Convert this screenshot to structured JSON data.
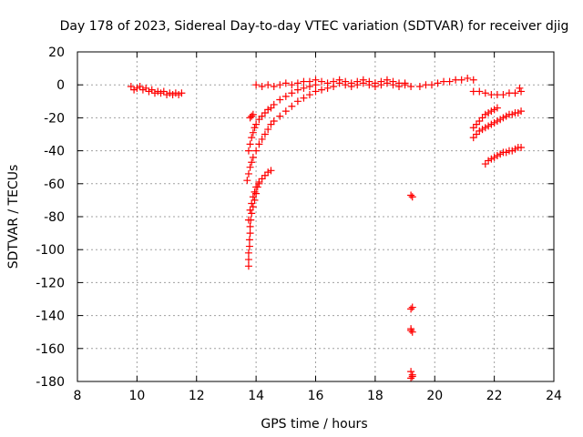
{
  "chart_data": {
    "type": "scatter",
    "title": "Day 178 of 2023, Sidereal Day-to-day VTEC variation (SDTVAR) for receiver djig",
    "xlabel": "GPS time / hours",
    "ylabel": "SDTVAR / TECUs",
    "xlim": [
      8,
      24
    ],
    "ylim": [
      -180,
      20
    ],
    "xticks": [
      8,
      10,
      12,
      14,
      16,
      18,
      20,
      22,
      24
    ],
    "yticks": [
      20,
      0,
      -20,
      -40,
      -60,
      -80,
      -100,
      -120,
      -140,
      -160,
      -180
    ],
    "grid": true,
    "marker": "+",
    "color": "#ff0000",
    "series": [
      {
        "name": "segment-1",
        "points": [
          [
            9.8,
            -1
          ],
          [
            9.9,
            -3
          ],
          [
            10.0,
            -2
          ],
          [
            10.1,
            -1
          ],
          [
            10.2,
            -3
          ],
          [
            10.3,
            -2
          ],
          [
            10.4,
            -4
          ],
          [
            10.5,
            -3
          ],
          [
            10.6,
            -5
          ],
          [
            10.7,
            -4
          ],
          [
            10.8,
            -5
          ],
          [
            10.9,
            -4
          ],
          [
            11.0,
            -6
          ],
          [
            11.1,
            -5
          ],
          [
            11.2,
            -6
          ],
          [
            11.3,
            -5
          ],
          [
            11.4,
            -6
          ],
          [
            11.5,
            -5
          ]
        ]
      },
      {
        "name": "segment-2",
        "points": [
          [
            13.8,
            -20
          ],
          [
            13.85,
            -19
          ],
          [
            13.9,
            -18
          ]
        ]
      },
      {
        "name": "segment-3",
        "points": [
          [
            13.75,
            -40
          ],
          [
            13.8,
            -36
          ],
          [
            13.85,
            -32
          ],
          [
            13.9,
            -29
          ],
          [
            13.95,
            -26
          ],
          [
            14.0,
            -24
          ],
          [
            14.1,
            -21
          ],
          [
            14.2,
            -19
          ],
          [
            14.3,
            -17
          ],
          [
            14.4,
            -15
          ],
          [
            14.5,
            -14
          ],
          [
            14.6,
            -12
          ],
          [
            14.8,
            -9
          ],
          [
            15.0,
            -7
          ],
          [
            15.2,
            -5
          ],
          [
            15.4,
            -3
          ],
          [
            15.6,
            -2
          ],
          [
            15.8,
            -1
          ],
          [
            16.0,
            0
          ]
        ]
      },
      {
        "name": "segment-4",
        "points": [
          [
            13.7,
            -58
          ],
          [
            13.75,
            -54
          ],
          [
            13.8,
            -50
          ],
          [
            13.85,
            -47
          ],
          [
            13.9,
            -44
          ],
          [
            14.0,
            -40
          ],
          [
            14.1,
            -36
          ],
          [
            14.2,
            -33
          ],
          [
            14.3,
            -30
          ],
          [
            14.4,
            -27
          ],
          [
            14.5,
            -24
          ],
          [
            14.6,
            -22
          ],
          [
            14.8,
            -19
          ],
          [
            15.0,
            -16
          ],
          [
            15.2,
            -13
          ],
          [
            15.4,
            -10
          ],
          [
            15.6,
            -8
          ],
          [
            15.8,
            -6
          ],
          [
            16.0,
            -4
          ],
          [
            16.2,
            -3
          ],
          [
            16.4,
            -2
          ],
          [
            16.6,
            -1
          ]
        ]
      },
      {
        "name": "segment-5",
        "points": [
          [
            13.75,
            -82
          ],
          [
            13.8,
            -76
          ],
          [
            13.85,
            -72
          ],
          [
            13.9,
            -68
          ],
          [
            13.95,
            -65
          ],
          [
            14.0,
            -62
          ],
          [
            14.1,
            -59
          ],
          [
            14.2,
            -57
          ],
          [
            14.3,
            -55
          ],
          [
            14.4,
            -53
          ],
          [
            14.5,
            -52
          ]
        ]
      },
      {
        "name": "segment-6",
        "points": [
          [
            13.75,
            -110
          ],
          [
            13.75,
            -106
          ],
          [
            13.75,
            -102
          ],
          [
            13.78,
            -98
          ],
          [
            13.78,
            -94
          ],
          [
            13.8,
            -90
          ],
          [
            13.8,
            -86
          ],
          [
            13.82,
            -82
          ],
          [
            13.85,
            -78
          ],
          [
            13.9,
            -74
          ],
          [
            13.95,
            -70
          ],
          [
            14.0,
            -66
          ],
          [
            14.05,
            -62
          ],
          [
            14.1,
            -60
          ]
        ]
      },
      {
        "name": "segment-7",
        "points": [
          [
            14.0,
            0
          ],
          [
            14.2,
            -1
          ],
          [
            14.4,
            0
          ],
          [
            14.6,
            -1
          ],
          [
            14.8,
            0
          ],
          [
            15.0,
            1
          ],
          [
            15.2,
            0
          ],
          [
            15.4,
            1
          ],
          [
            15.6,
            2
          ],
          [
            15.8,
            2
          ],
          [
            16.0,
            3
          ],
          [
            16.2,
            2
          ],
          [
            16.4,
            1
          ],
          [
            16.6,
            2
          ],
          [
            16.8,
            3
          ],
          [
            17.0,
            2
          ],
          [
            17.2,
            1
          ],
          [
            17.4,
            2
          ],
          [
            17.6,
            3
          ],
          [
            17.8,
            2
          ],
          [
            18.0,
            1
          ],
          [
            18.2,
            2
          ],
          [
            18.4,
            3
          ],
          [
            18.6,
            2
          ],
          [
            18.8,
            1
          ],
          [
            19.0,
            1
          ]
        ]
      },
      {
        "name": "segment-8",
        "points": [
          [
            16.8,
            1
          ],
          [
            17.0,
            0
          ],
          [
            17.2,
            -1
          ],
          [
            17.4,
            0
          ],
          [
            17.6,
            1
          ],
          [
            17.8,
            0
          ],
          [
            18.0,
            -1
          ],
          [
            18.2,
            0
          ],
          [
            18.4,
            1
          ],
          [
            18.6,
            0
          ],
          [
            18.8,
            -1
          ],
          [
            19.0,
            0
          ],
          [
            19.2,
            -1
          ]
        ]
      },
      {
        "name": "segment-9",
        "points": [
          [
            19.2,
            -67
          ],
          [
            19.25,
            -68
          ]
        ]
      },
      {
        "name": "segment-10",
        "points": [
          [
            19.2,
            -136
          ],
          [
            19.25,
            -135
          ]
        ]
      },
      {
        "name": "segment-11",
        "points": [
          [
            19.2,
            -148
          ],
          [
            19.25,
            -150
          ],
          [
            19.2,
            -149
          ]
        ]
      },
      {
        "name": "segment-12",
        "points": [
          [
            19.2,
            -174
          ],
          [
            19.25,
            -176
          ],
          [
            19.2,
            -178
          ],
          [
            19.25,
            -177
          ]
        ]
      },
      {
        "name": "segment-13",
        "points": [
          [
            19.5,
            -1
          ],
          [
            19.7,
            0
          ],
          [
            19.9,
            0
          ],
          [
            20.1,
            1
          ],
          [
            20.3,
            2
          ],
          [
            20.5,
            2
          ],
          [
            20.7,
            3
          ],
          [
            20.9,
            3
          ],
          [
            21.1,
            4
          ],
          [
            21.3,
            3
          ]
        ]
      },
      {
        "name": "segment-14",
        "points": [
          [
            21.3,
            -4
          ],
          [
            21.5,
            -4
          ],
          [
            21.7,
            -5
          ],
          [
            21.9,
            -6
          ],
          [
            22.1,
            -6
          ],
          [
            22.3,
            -6
          ],
          [
            22.5,
            -5
          ],
          [
            22.7,
            -5
          ],
          [
            22.9,
            -4
          ],
          [
            22.85,
            -2
          ]
        ]
      },
      {
        "name": "segment-15",
        "points": [
          [
            21.3,
            -26
          ],
          [
            21.4,
            -24
          ],
          [
            21.5,
            -22
          ],
          [
            21.6,
            -20
          ],
          [
            21.7,
            -18
          ],
          [
            21.8,
            -17
          ],
          [
            21.9,
            -16
          ],
          [
            22.0,
            -15
          ],
          [
            22.1,
            -14
          ]
        ]
      },
      {
        "name": "segment-16",
        "points": [
          [
            21.3,
            -32
          ],
          [
            21.4,
            -30
          ],
          [
            21.5,
            -28
          ],
          [
            21.6,
            -27
          ],
          [
            21.7,
            -26
          ],
          [
            21.8,
            -25
          ],
          [
            21.9,
            -24
          ],
          [
            22.0,
            -23
          ],
          [
            22.1,
            -22
          ],
          [
            22.2,
            -21
          ],
          [
            22.3,
            -20
          ],
          [
            22.4,
            -19
          ],
          [
            22.5,
            -18
          ],
          [
            22.6,
            -18
          ],
          [
            22.7,
            -17
          ],
          [
            22.8,
            -17
          ],
          [
            22.9,
            -16
          ]
        ]
      },
      {
        "name": "segment-17",
        "points": [
          [
            21.7,
            -48
          ],
          [
            21.8,
            -46
          ],
          [
            21.9,
            -45
          ],
          [
            22.0,
            -44
          ],
          [
            22.1,
            -43
          ],
          [
            22.2,
            -42
          ],
          [
            22.3,
            -41
          ],
          [
            22.4,
            -41
          ],
          [
            22.5,
            -40
          ],
          [
            22.6,
            -40
          ],
          [
            22.7,
            -39
          ],
          [
            22.8,
            -38
          ],
          [
            22.9,
            -38
          ]
        ]
      }
    ]
  }
}
